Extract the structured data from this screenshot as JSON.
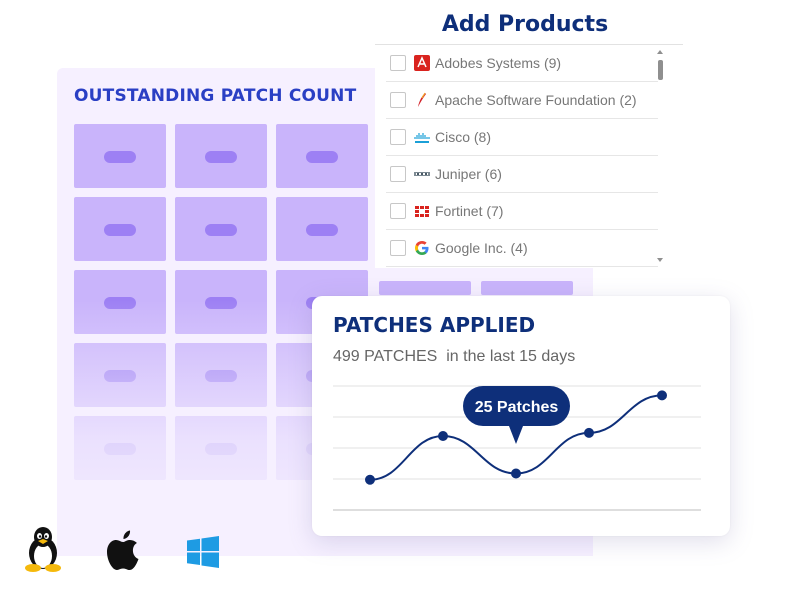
{
  "outstanding_patch": {
    "title": "OUTSTANDING PATCH COUNT",
    "tile_color": "#c9b4fb",
    "pill_color": "#9d80f4"
  },
  "add_products": {
    "title": "Add Products",
    "items": [
      {
        "label": "Adobes Systems  (9)",
        "icon": "adobe-icon"
      },
      {
        "label": "Apache Software Foundation (2)",
        "icon": "apache-feather-icon"
      },
      {
        "label": "Cisco (8)",
        "icon": "cisco-icon"
      },
      {
        "label": "Juniper (6)",
        "icon": "juniper-icon"
      },
      {
        "label": "Fortinet (7)",
        "icon": "fortinet-icon"
      },
      {
        "label": "Google Inc. (4)",
        "icon": "google-icon"
      }
    ]
  },
  "patches_applied": {
    "title": "PATCHES APPLIED",
    "subtitle": "499 PATCHES  in the last 15 days",
    "tooltip": "25 Patches"
  },
  "os_icons": [
    "linux-tux-icon",
    "apple-icon",
    "windows-icon"
  ],
  "chart_data": {
    "type": "line",
    "title": "PATCHES APPLIED",
    "xlabel": "",
    "ylabel": "",
    "x": [
      1,
      2,
      3,
      4,
      5
    ],
    "series": [
      {
        "values": [
          10,
          24,
          12,
          25,
          37
        ]
      }
    ],
    "ylim": [
      0,
      40
    ],
    "grid": true,
    "color": "#0e2f7a"
  }
}
